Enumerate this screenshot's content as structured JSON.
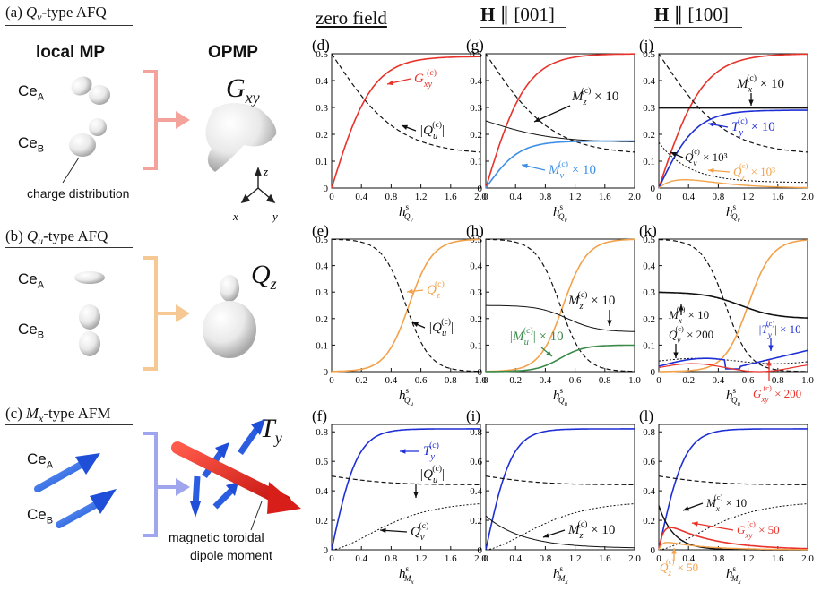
{
  "colors": {
    "red": "#e8322a",
    "orange": "#f2a24a",
    "blue": "#1f2fd6",
    "green": "#3a8a4a",
    "ltblue": "#3d8fe6",
    "pink": "#f4a39c",
    "peach": "#f6c894",
    "lav": "#9fa6ee"
  },
  "left": {
    "rows": [
      {
        "label": "(a)",
        "type": "Q",
        "sub": "v",
        "suffix": "-type AFQ",
        "opmp": "G",
        "opmp_sub": "xy",
        "ceA": "Ce",
        "ceA_sub": "A",
        "ceB": "Ce",
        "ceB_sub": "B"
      },
      {
        "label": "(b)",
        "type": "Q",
        "sub": "u",
        "suffix": "-type AFQ",
        "opmp": "Q",
        "opmp_sub": "z",
        "ceA": "Ce",
        "ceA_sub": "A",
        "ceB": "Ce",
        "ceB_sub": "B"
      },
      {
        "label": "(c)",
        "type": "M",
        "sub": "x",
        "suffix": "-type AFM",
        "opmp": "T",
        "opmp_sub": "y",
        "ceA": "Ce",
        "ceA_sub": "A",
        "ceB": "Ce",
        "ceB_sub": "B"
      }
    ],
    "local_mp": "local MP",
    "opmp_head": "OPMP",
    "charge": "charge distribution",
    "axes": {
      "z": "z",
      "x": "x",
      "y": "y"
    },
    "toroidal_line1": "magnetic toroidal",
    "toroidal_line2": "dipole moment"
  },
  "columns": {
    "c1": "zero field",
    "c2_bold": "H",
    "c2_rest": " ∥ [001]",
    "c3_bold": "H",
    "c3_rest": " ∥ [100]"
  },
  "panels": [
    {
      "id": "(d)",
      "xvar": "Q",
      "xsub": "v",
      "xmax": 2.0,
      "ymax": 0.5,
      "yticks": [
        "0",
        "0.1",
        "0.2",
        "0.3",
        "0.4",
        "0.5"
      ],
      "xticks": [
        "0",
        "0.4",
        "0.8",
        "1.2",
        "1.6",
        "2.0"
      ]
    },
    {
      "id": "(g)",
      "xvar": "Q",
      "xsub": "v",
      "xmax": 2.0,
      "ymax": 0.5,
      "yticks": [
        "0",
        "0.1",
        "0.2",
        "0.3",
        "0.4",
        "0.5"
      ],
      "xticks": [
        "0",
        "0.4",
        "0.8",
        "1.2",
        "1.6",
        "2.0"
      ]
    },
    {
      "id": "(j)",
      "xvar": "Q",
      "xsub": "v",
      "xmax": 2.0,
      "ymax": 0.5,
      "yticks": [
        "0",
        "0.1",
        "0.2",
        "0.3",
        "0.4",
        "0.5"
      ],
      "xticks": [
        "0",
        "0.4",
        "0.8",
        "1.2",
        "1.6",
        "2.0"
      ]
    },
    {
      "id": "(e)",
      "xvar": "Q",
      "xsub": "u",
      "xmax": 1.0,
      "ymax": 0.5,
      "yticks": [
        "0",
        "0.1",
        "0.2",
        "0.3",
        "0.4",
        "0.5"
      ],
      "xticks": [
        "0",
        "0.2",
        "0.4",
        "0.6",
        "0.8",
        "1.0"
      ]
    },
    {
      "id": "(h)",
      "xvar": "Q",
      "xsub": "u",
      "xmax": 1.0,
      "ymax": 0.5,
      "yticks": [
        "0",
        "0.1",
        "0.2",
        "0.3",
        "0.4",
        "0.5"
      ],
      "xticks": [
        "0",
        "0.2",
        "0.4",
        "0.6",
        "0.8",
        "1.0"
      ]
    },
    {
      "id": "(k)",
      "xvar": "Q",
      "xsub": "u",
      "xmax": 1.0,
      "ymax": 0.5,
      "yticks": [
        "0",
        "0.1",
        "0.2",
        "0.3",
        "0.4",
        "0.5"
      ],
      "xticks": [
        "0",
        "0.2",
        "0.4",
        "0.6",
        "0.8",
        "1.0"
      ]
    },
    {
      "id": "(f)",
      "xvar": "M",
      "xsub": "x",
      "xmax": 2.0,
      "ymax": 0.85,
      "yticks": [
        "0",
        "0.2",
        "0.4",
        "0.6",
        "0.8"
      ],
      "xticks": [
        "0",
        "0.4",
        "0.8",
        "1.2",
        "1.6",
        "2.0"
      ]
    },
    {
      "id": "(i)",
      "xvar": "M",
      "xsub": "x",
      "xmax": 2.0,
      "ymax": 0.85,
      "yticks": [
        "0",
        "0.2",
        "0.4",
        "0.6",
        "0.8"
      ],
      "xticks": [
        "0",
        "0.4",
        "0.8",
        "1.2",
        "1.6",
        "2.0"
      ]
    },
    {
      "id": "(l)",
      "xvar": "M",
      "xsub": "x",
      "xmax": 2.0,
      "ymax": 0.85,
      "yticks": [
        "0",
        "0.2",
        "0.4",
        "0.6",
        "0.8"
      ],
      "xticks": [
        "0",
        "0.4",
        "0.8",
        "1.2",
        "1.6",
        "2.0"
      ]
    }
  ],
  "annotations": {
    "d1": "G",
    "d1s": "xy",
    "d2": "|Q",
    "d2s": "u",
    "g1": "M",
    "g1s": "z",
    "g1t": " × 10",
    "g2": "M",
    "g2s": "v",
    "g2t": " × 10",
    "j1": "M",
    "j1s": "x",
    "j1t": " × 10",
    "j2": "T",
    "j2s": "y",
    "j2t": " × 10",
    "j3": "Q",
    "j3s": "v",
    "j3t": " × 10³",
    "j4": "Q",
    "j4s": "z",
    "j4t": " × 10³",
    "e1": "Q",
    "e1s": "z",
    "e2": "|Q",
    "e2s": "u",
    "h1": "M",
    "h1s": "z",
    "h1t": " × 10",
    "h2": "|M",
    "h2s": "u",
    "h2t": "| × 10",
    "k1": "M",
    "k1s": "x",
    "k1t": " × 10",
    "k2": "Q",
    "k2s": "v",
    "k2t": " × 200",
    "k3": "|T",
    "k3s": "y",
    "k3t": "| × 10",
    "k4": "G",
    "k4s": "xy",
    "k4t": " × 200",
    "f1": "T",
    "f1s": "y",
    "f2": "|Q",
    "f2s": "u",
    "f3": "Q",
    "f3s": "v",
    "i1": "M",
    "i1s": "z",
    "i1t": " × 10",
    "l1": "M",
    "l1s": "x",
    "l1t": " × 10",
    "l2": "G",
    "l2s": "xy",
    "l2t": " × 50",
    "l3": "Q",
    "l3s": "z",
    "l3t": " × 50",
    "sup": "(c)",
    "h": "h",
    "hs": "s"
  }
}
